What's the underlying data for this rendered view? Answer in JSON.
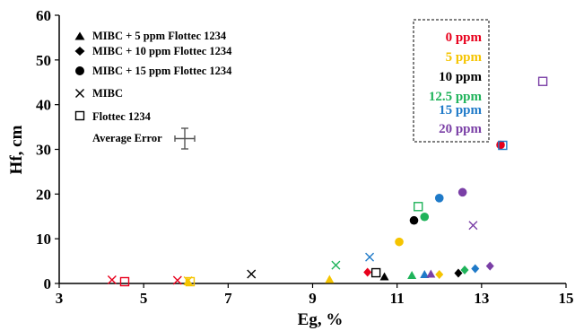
{
  "chart_data": {
    "type": "scatter",
    "title": "",
    "xlabel": "Eg, %",
    "ylabel": "Hf, cm",
    "xlim": [
      3,
      15
    ],
    "ylim": [
      0,
      60
    ],
    "x_ticks": [
      "3",
      "5",
      "7",
      "9",
      "11",
      "13",
      "15"
    ],
    "y_ticks": [
      "0",
      "10",
      "20",
      "30",
      "40",
      "50",
      "60"
    ],
    "grid": false,
    "legend": {
      "placement": "top-left",
      "entries": [
        {
          "symbol": "triangle",
          "label": "MIBC + 5 ppm Flottec 1234"
        },
        {
          "symbol": "diamond",
          "label": "MIBC + 10 ppm Flottec 1234"
        },
        {
          "symbol": "circle",
          "label": "MIBC + 15 ppm Flottec 1234"
        },
        {
          "symbol": "cross",
          "label": "MIBC"
        },
        {
          "symbol": "open-square",
          "label": "Flottec 1234"
        },
        {
          "symbol": "error-bar",
          "label": "Average Error"
        }
      ]
    },
    "concentration_legend": {
      "placement": "top-right",
      "entries": [
        {
          "label": "0 ppm",
          "color": "#e8001c"
        },
        {
          "label": "5 ppm",
          "color": "#f5c400"
        },
        {
          "label": "10 ppm",
          "color": "#000000"
        },
        {
          "label": "12.5 ppm",
          "color": "#1fb35a"
        },
        {
          "label": "15 ppm",
          "color": "#1f7ac8"
        },
        {
          "label": "20 ppm",
          "color": "#7a3fa6"
        }
      ]
    },
    "points": [
      {
        "x": 4.25,
        "y": 0.8,
        "marker": "cross",
        "color": "#e8001c"
      },
      {
        "x": 4.55,
        "y": 0.4,
        "marker": "open-square",
        "color": "#e8001c"
      },
      {
        "x": 5.8,
        "y": 0.7,
        "marker": "cross",
        "color": "#e8001c"
      },
      {
        "x": 6.05,
        "y": 0.3,
        "marker": "triangle",
        "color": "#f5c400"
      },
      {
        "x": 6.05,
        "y": 0.6,
        "marker": "cross",
        "color": "#f5c400"
      },
      {
        "x": 6.1,
        "y": 0.4,
        "marker": "open-square",
        "color": "#f5c400"
      },
      {
        "x": 7.55,
        "y": 2.1,
        "marker": "cross",
        "color": "#000000"
      },
      {
        "x": 9.4,
        "y": 0.8,
        "marker": "triangle",
        "color": "#f5c400"
      },
      {
        "x": 9.55,
        "y": 4.1,
        "marker": "cross",
        "color": "#1fb35a"
      },
      {
        "x": 10.3,
        "y": 2.5,
        "marker": "diamond",
        "color": "#e8001c"
      },
      {
        "x": 10.35,
        "y": 5.9,
        "marker": "cross",
        "color": "#1f7ac8"
      },
      {
        "x": 10.5,
        "y": 2.4,
        "marker": "open-square",
        "color": "#000000"
      },
      {
        "x": 10.7,
        "y": 1.4,
        "marker": "triangle",
        "color": "#000000"
      },
      {
        "x": 11.05,
        "y": 9.3,
        "marker": "circle",
        "color": "#f5c400"
      },
      {
        "x": 11.4,
        "y": 14.1,
        "marker": "circle",
        "color": "#000000"
      },
      {
        "x": 11.35,
        "y": 1.7,
        "marker": "triangle",
        "color": "#1fb35a"
      },
      {
        "x": 11.5,
        "y": 17.2,
        "marker": "open-square",
        "color": "#1fb35a"
      },
      {
        "x": 11.65,
        "y": 14.9,
        "marker": "circle",
        "color": "#1fb35a"
      },
      {
        "x": 11.65,
        "y": 1.9,
        "marker": "triangle",
        "color": "#1f7ac8"
      },
      {
        "x": 11.8,
        "y": 2.0,
        "marker": "triangle",
        "color": "#7a3fa6"
      },
      {
        "x": 12.0,
        "y": 19.1,
        "marker": "circle",
        "color": "#1f7ac8"
      },
      {
        "x": 12.0,
        "y": 2.0,
        "marker": "diamond",
        "color": "#f5c400"
      },
      {
        "x": 12.45,
        "y": 2.3,
        "marker": "diamond",
        "color": "#000000"
      },
      {
        "x": 12.55,
        "y": 20.4,
        "marker": "circle",
        "color": "#7a3fa6"
      },
      {
        "x": 12.6,
        "y": 3.0,
        "marker": "diamond",
        "color": "#1fb35a"
      },
      {
        "x": 12.8,
        "y": 13.0,
        "marker": "cross",
        "color": "#7a3fa6"
      },
      {
        "x": 12.85,
        "y": 3.3,
        "marker": "diamond",
        "color": "#1f7ac8"
      },
      {
        "x": 13.2,
        "y": 3.9,
        "marker": "diamond",
        "color": "#7a3fa6"
      },
      {
        "x": 13.45,
        "y": 31.0,
        "marker": "circle",
        "color": "#e8001c"
      },
      {
        "x": 13.5,
        "y": 30.9,
        "marker": "open-square",
        "color": "#1f7ac8"
      },
      {
        "x": 14.45,
        "y": 45.2,
        "marker": "open-square",
        "color": "#7a3fa6"
      }
    ]
  }
}
